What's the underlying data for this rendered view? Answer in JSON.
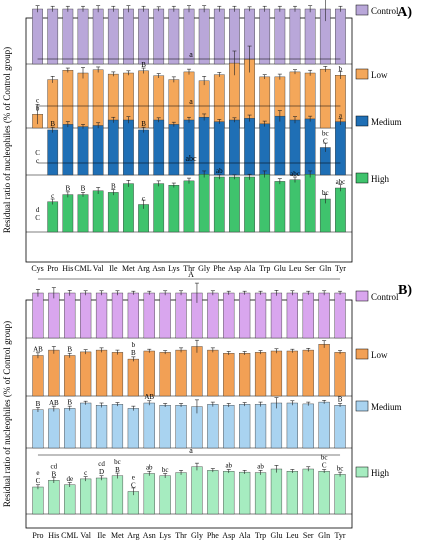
{
  "figure": {
    "ylabel": "Residual ratio of nucleophiles (% of Control group)",
    "colors": {
      "A": {
        "Control": "#b9a7d9",
        "Low": "#f4a75a",
        "Medium": "#1f6fb5",
        "High": "#3fc36d"
      },
      "B": {
        "Control": "#d9a6ee",
        "Low": "#f2a055",
        "Medium": "#a9d3f0",
        "High": "#a6ecc0"
      }
    }
  },
  "chart_data": [
    {
      "panel": "A)",
      "type": "bar",
      "categories": [
        "Cys",
        "Pro",
        "His",
        "CML",
        "Val",
        "Ile",
        "Met",
        "Arg",
        "Asn",
        "Lys",
        "Thr",
        "Gly",
        "Phe",
        "Asp",
        "Ala",
        "Trp",
        "Glu",
        "Leu",
        "Ser",
        "Gln",
        "Tyr"
      ],
      "ylim": [
        0,
        140
      ],
      "series": [
        {
          "name": "Control",
          "values": [
            100,
            100,
            100,
            100,
            100,
            100,
            100,
            100,
            100,
            100,
            100,
            100,
            100,
            100,
            100,
            100,
            100,
            100,
            100,
            100,
            100
          ],
          "errors": [
            6,
            5,
            5,
            5,
            6,
            5,
            6,
            5,
            4,
            5,
            6,
            6,
            5,
            5,
            4,
            5,
            5,
            5,
            6,
            22,
            5
          ],
          "bracket_label": "A",
          "letters": [
            "",
            "",
            "",
            "",
            "",
            "",
            "",
            "",
            "",
            "",
            "",
            "",
            "",
            "",
            "",
            "",
            "",
            "",
            "",
            "",
            ""
          ]
        },
        {
          "name": "Low",
          "values": [
            25,
            88,
            105,
            100,
            106,
            98,
            100,
            104,
            95,
            88,
            102,
            86,
            97,
            118,
            125,
            93,
            93,
            102,
            100,
            107,
            96
          ],
          "errors": [
            18,
            6,
            4,
            10,
            5,
            4,
            4,
            5,
            4,
            5,
            5,
            8,
            4,
            22,
            24,
            4,
            5,
            4,
            5,
            5,
            7
          ],
          "bracket_label": "a",
          "letters": [
            "c\nb",
            "",
            "",
            "",
            "",
            "",
            "",
            "B",
            "",
            "",
            "",
            "",
            "",
            "",
            "",
            "",
            "",
            "",
            "",
            "",
            "b"
          ]
        },
        {
          "name": "Medium",
          "values": [
            0,
            82,
            92,
            88,
            90,
            100,
            100,
            82,
            100,
            92,
            100,
            105,
            97,
            100,
            103,
            93,
            107,
            100,
            102,
            50,
            97
          ],
          "errors": [
            0,
            5,
            5,
            4,
            5,
            5,
            6,
            5,
            4,
            4,
            5,
            6,
            4,
            4,
            6,
            5,
            10,
            6,
            5,
            8,
            6
          ],
          "bracket_label": "a",
          "letters": [
            "C\nc",
            "B",
            "",
            "",
            "",
            "",
            "",
            "B",
            "",
            "",
            "",
            "",
            "",
            "",
            "",
            "",
            "",
            "",
            "",
            "bc\nC",
            "a"
          ]
        },
        {
          "name": "High",
          "values": [
            0,
            55,
            68,
            68,
            75,
            72,
            88,
            50,
            88,
            85,
            93,
            105,
            100,
            100,
            100,
            105,
            92,
            95,
            105,
            60,
            80
          ],
          "errors": [
            0,
            5,
            5,
            4,
            6,
            5,
            6,
            8,
            5,
            4,
            5,
            6,
            4,
            4,
            5,
            6,
            5,
            5,
            6,
            8,
            6
          ],
          "bracket_label": "abc",
          "letters": [
            "d\nC",
            "c",
            "B",
            "B",
            "",
            "B",
            "",
            "c",
            "",
            "",
            "",
            "",
            "ab",
            "",
            "",
            "",
            "",
            "abc",
            "",
            "bc",
            "abc"
          ]
        }
      ]
    },
    {
      "panel": "B)",
      "type": "bar",
      "categories": [
        "Pro",
        "His",
        "CML",
        "Val",
        "Ile",
        "Met",
        "Arg",
        "Asn",
        "Lys",
        "Thr",
        "Gly",
        "Phe",
        "Asp",
        "Ala",
        "Trp",
        "Glu",
        "Leu",
        "Ser",
        "Gln",
        "Tyr"
      ],
      "ylim": [
        0,
        140
      ],
      "series": [
        {
          "name": "Control",
          "values": [
            100,
            100,
            100,
            100,
            100,
            100,
            100,
            100,
            100,
            100,
            100,
            100,
            100,
            100,
            100,
            100,
            100,
            100,
            100,
            100
          ],
          "errors": [
            8,
            12,
            6,
            5,
            5,
            5,
            4,
            4,
            5,
            5,
            22,
            5,
            4,
            4,
            4,
            6,
            5,
            4,
            5,
            4
          ],
          "bracket_label": "A",
          "letters": [
            "",
            "",
            "",
            "",
            "",
            "",
            "",
            "",
            "",
            "",
            "",
            "",
            "",
            "",
            "",
            "",
            "",
            "",
            "",
            ""
          ]
        },
        {
          "name": "Low",
          "values": [
            90,
            102,
            90,
            98,
            102,
            97,
            82,
            100,
            97,
            102,
            110,
            102,
            95,
            95,
            97,
            100,
            100,
            102,
            115,
            97
          ],
          "errors": [
            6,
            8,
            5,
            5,
            5,
            5,
            5,
            4,
            4,
            5,
            14,
            5,
            4,
            4,
            4,
            5,
            4,
            4,
            8,
            4
          ],
          "bracket_label": "",
          "letters": [
            "AB",
            "",
            "B",
            "",
            "",
            "",
            "b\nB",
            "",
            "",
            "",
            "",
            "",
            "",
            "",
            "",
            "",
            "",
            "",
            "",
            ""
          ]
        },
        {
          "name": "Medium",
          "values": [
            85,
            87,
            88,
            100,
            95,
            97,
            88,
            100,
            95,
            95,
            92,
            97,
            95,
            97,
            97,
            100,
            100,
            98,
            102,
            95
          ],
          "errors": [
            5,
            6,
            5,
            4,
            5,
            4,
            5,
            5,
            4,
            4,
            15,
            5,
            4,
            4,
            5,
            12,
            5,
            4,
            4,
            4
          ],
          "bracket_label": "",
          "letters": [
            "B",
            "AB",
            "B",
            "",
            "",
            "",
            "",
            "AB",
            "",
            "",
            "",
            "",
            "",
            "",
            "",
            "",
            "",
            "",
            "",
            "B"
          ]
        },
        {
          "name": "High",
          "values": [
            60,
            75,
            65,
            78,
            80,
            85,
            50,
            90,
            85,
            92,
            105,
            97,
            95,
            93,
            92,
            100,
            95,
            100,
            95,
            88
          ],
          "errors": [
            5,
            6,
            5,
            5,
            5,
            6,
            8,
            5,
            5,
            5,
            8,
            4,
            4,
            4,
            5,
            8,
            4,
            5,
            4,
            5
          ],
          "bracket_label": "a",
          "letters": [
            "e\nC",
            "cd\nB",
            "de",
            "c",
            "cd\nD",
            "bc\nB",
            "e\nC",
            "ab",
            "bc",
            "",
            "",
            "",
            "ab",
            "",
            "ab",
            "",
            "",
            "",
            "bc\nC",
            "bc"
          ]
        }
      ]
    }
  ]
}
